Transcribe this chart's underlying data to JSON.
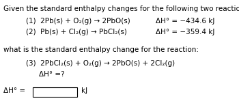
{
  "title_line": "Given the standard enthalpy changes for the following two reactions:",
  "reaction1_left": "(1)  2Pb(s) + O₂(g) → 2PbO(s)",
  "reaction1_dH": "ΔH° = −434.6 kJ",
  "reaction2_left": "(2)  Pb(s) + Cl₂(g) → PbCl₂(s)",
  "reaction2_dH": "ΔH° = −359.4 kJ",
  "question_line": "what is the standard enthalpy change for the reaction:",
  "reaction3": "(3)  2PbCl₂(s) + O₂(g) → 2PbO(s) + 2Cl₂(g)",
  "reaction3_dH": "ΔH° =?",
  "answer_label": "ΔH° =",
  "answer_unit": "kJ",
  "bg_color": "#ffffff",
  "text_color": "#000000",
  "font_size": 7.5
}
